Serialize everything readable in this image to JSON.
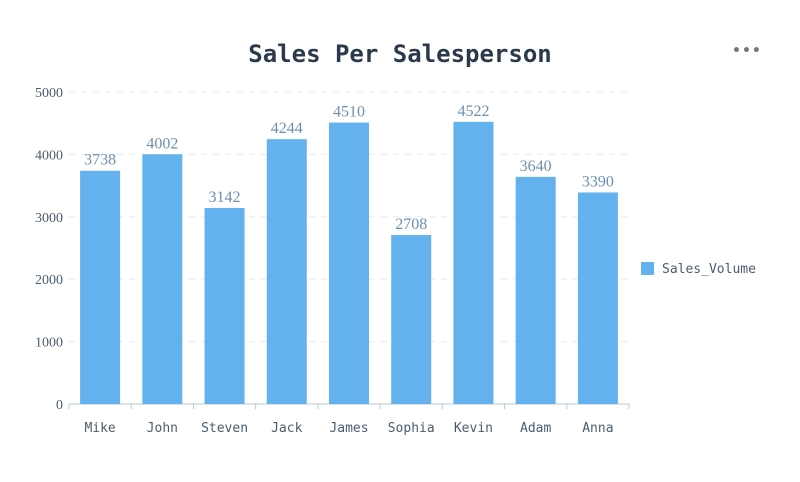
{
  "chart_data": {
    "type": "bar",
    "title": "Sales Per Salesperson",
    "categories": [
      "Mike",
      "John",
      "Steven",
      "Jack",
      "James",
      "Sophia",
      "Kevin",
      "Adam",
      "Anna"
    ],
    "series": [
      {
        "name": "Sales_Volume",
        "values": [
          3738,
          4002,
          3142,
          4244,
          4510,
          2708,
          4522,
          3640,
          3390
        ],
        "color": "#63b2ee"
      }
    ],
    "ylim": [
      0,
      5000
    ],
    "yticks": [
      0,
      1000,
      2000,
      3000,
      4000,
      5000
    ],
    "grid": true,
    "legend_position": "right",
    "data_labels": true
  },
  "toolbar": {
    "more_icon": "more-horizontal-icon",
    "more_label": "•••"
  }
}
